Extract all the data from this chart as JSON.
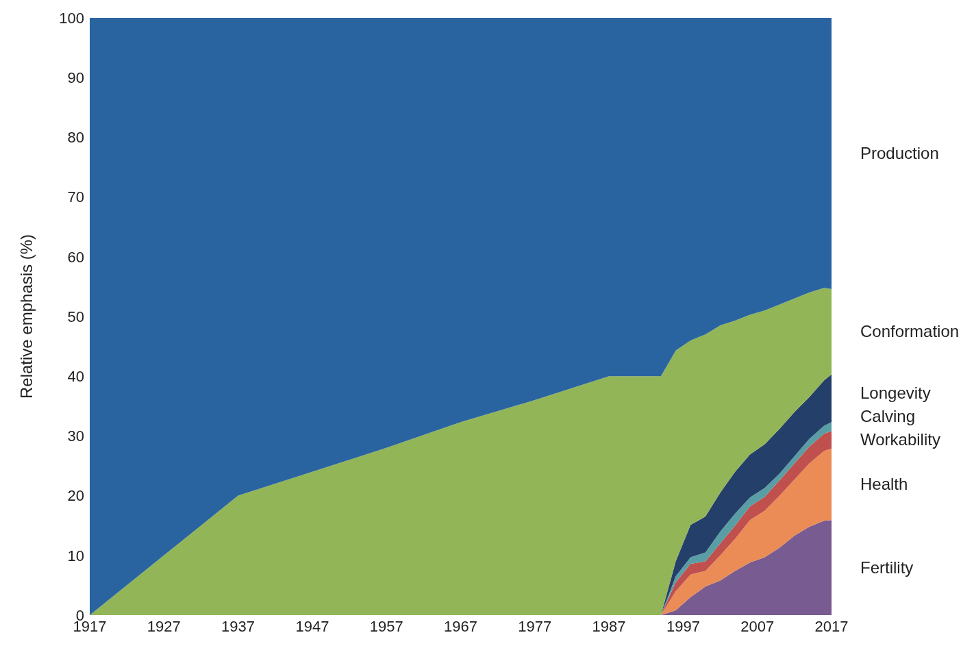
{
  "chart_data": {
    "type": "area",
    "stacked": true,
    "ylabel": "Relative emphasis (%)",
    "x": [
      1917,
      1937,
      1947,
      1957,
      1967,
      1977,
      1987,
      1994,
      1996,
      1998,
      2000,
      2002,
      2004,
      2006,
      2008,
      2010,
      2012,
      2014,
      2016,
      2017
    ],
    "series": [
      {
        "name": "Fertility",
        "color": "#775b91",
        "values": [
          0,
          0,
          0,
          0,
          0,
          0,
          0,
          0,
          0.8,
          3,
          4.8,
          5.8,
          7.4,
          8.8,
          9.7,
          11.3,
          13.3,
          14.8,
          15.8,
          15.9
        ]
      },
      {
        "name": "Health",
        "color": "#eb8c56",
        "values": [
          0,
          0,
          0,
          0,
          0,
          0,
          0,
          0,
          3.2,
          3.8,
          2.6,
          4.2,
          5.4,
          7.1,
          7.8,
          8.7,
          9.4,
          10.6,
          11.7,
          12
        ]
      },
      {
        "name": "Workability",
        "color": "#c0504d",
        "values": [
          0,
          0,
          0,
          0,
          0,
          0,
          0,
          0,
          1.5,
          1.8,
          1.6,
          2,
          2.2,
          2.3,
          2.3,
          2.6,
          2.7,
          2.8,
          2.9,
          2.9
        ]
      },
      {
        "name": "Calving",
        "color": "#5a9ea5",
        "values": [
          0,
          0,
          0,
          0,
          0,
          0,
          0,
          0,
          1,
          1.1,
          1.5,
          2,
          2,
          1.5,
          1.5,
          1.1,
          1.2,
          1.3,
          1.3,
          1.5
        ]
      },
      {
        "name": "Longevity",
        "color": "#253f6b",
        "values": [
          0,
          0,
          0,
          0,
          0,
          0,
          0,
          0,
          2.5,
          5.4,
          6,
          6.5,
          7,
          7.2,
          7.3,
          7.5,
          7.4,
          7,
          7.6,
          8
        ]
      },
      {
        "name": "Conformation",
        "color": "#92b558",
        "values": [
          0,
          20,
          24,
          28,
          32.3,
          36,
          40,
          40,
          35.3,
          30.9,
          30.5,
          28,
          25.3,
          23.4,
          22.4,
          20.8,
          19,
          17.5,
          15.5,
          14.3
        ]
      },
      {
        "name": "Production",
        "color": "#2a64a0",
        "values": [
          100,
          80,
          76,
          72,
          67.7,
          64,
          60,
          60,
          55.7,
          54,
          53,
          51.5,
          50.7,
          49.7,
          49,
          48,
          47,
          46,
          45.2,
          45.4
        ]
      }
    ],
    "xlim": [
      1917,
      2017
    ],
    "xticks": [
      1917,
      1927,
      1937,
      1947,
      1957,
      1967,
      1977,
      1987,
      1997,
      2007,
      2017
    ],
    "ylim": [
      0,
      100
    ],
    "yticks": [
      0,
      10,
      20,
      30,
      40,
      50,
      60,
      70,
      80,
      90,
      100
    ],
    "grid": false
  }
}
